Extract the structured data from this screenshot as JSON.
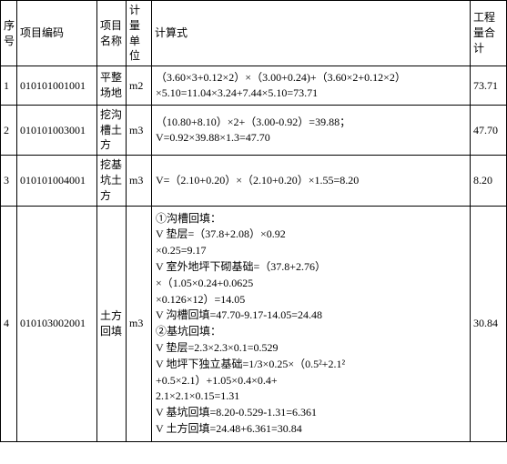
{
  "headers": {
    "seq": "序号",
    "code": "项目编码",
    "name": "项目名称",
    "unit": "计量单位",
    "formula": "计算式",
    "total": "工程量合计"
  },
  "rows": [
    {
      "seq": "1",
      "code": "010101001001",
      "name": "平整场地",
      "unit": "m2",
      "formula": "（3.60×3+0.12×2）×（3.00+0.24)+（3.60×2+0.12×2）×5.10=11.04×3.24+7.44×5.10=73.71",
      "total": "73.71"
    },
    {
      "seq": "2",
      "code": "010101003001",
      "name": "挖沟槽土方",
      "unit": "m3",
      "formula_lines": [
        "（10.80+8.10）×2+（3.00-0.92）=39.88；",
        "V=0.92×39.88×1.3=47.70"
      ],
      "total": "47.70"
    },
    {
      "seq": "3",
      "code": "010101004001",
      "name": "挖基坑土方",
      "unit": "m3",
      "formula": "V=（2.10+0.20）×（2.10+0.20）×1.55=8.20",
      "total": "8.20"
    },
    {
      "seq": "4",
      "code": "010103002001",
      "name": "土方回填",
      "unit": "m3",
      "formula_lines": [
        "①沟槽回填：",
        "V 垫层=（37.8+2.08）×0.92",
        "×0.25=9.17",
        "V 室外地坪下砌基础=（37.8+2.76）",
        "×（1.05×0.24+0.0625",
        "×0.126×12）=14.05",
        "V 沟槽回填=47.70-9.17-14.05=24.48",
        "②基坑回填：",
        "V 垫层=2.3×2.3×0.1=0.529",
        "V 地坪下独立基础=1/3×0.25×（0.5²+2.1²",
        "+0.5×2.1）+1.05×0.4×0.4+",
        "2.1×2.1×0.15=1.31",
        "V 基坑回填=8.20-0.529-1.31=6.361",
        "V 土方回填=24.48+6.361=30.84"
      ],
      "total": "30.84"
    }
  ]
}
